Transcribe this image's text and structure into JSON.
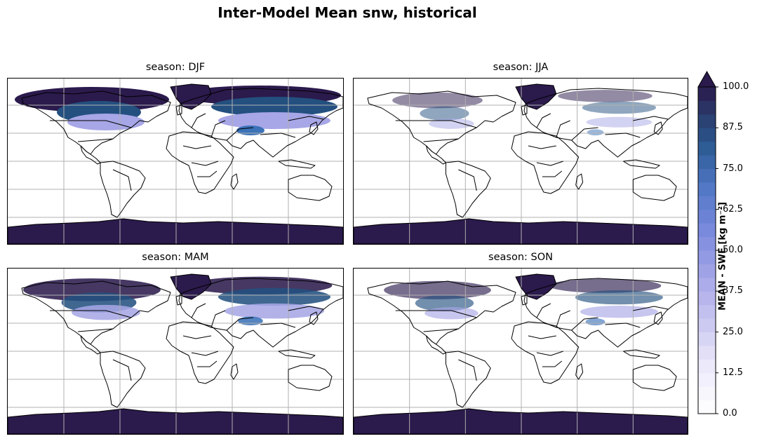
{
  "figure": {
    "title": "Inter-Model Mean snw, historical"
  },
  "panels": [
    {
      "id": "djf",
      "title": "season: DJF",
      "snow_level": 1.0
    },
    {
      "id": "jja",
      "title": "season: JJA",
      "snow_level": 0.25
    },
    {
      "id": "mam",
      "title": "season: MAM",
      "snow_level": 0.8
    },
    {
      "id": "son",
      "title": "season: SON",
      "snow_level": 0.45
    }
  ],
  "colorbar": {
    "label": "MEAN - SWE [kg m⁻²]",
    "min": 0.0,
    "max": 100.0,
    "extend": "max",
    "tick_labels": [
      "0.0",
      "12.5",
      "25.0",
      "37.5",
      "50.0",
      "62.5",
      "75.0",
      "87.5",
      "100.0"
    ],
    "colors": [
      "#ffffff",
      "#2b1a4c",
      "#23507f",
      "#3b72b8",
      "#6d86d6",
      "#a7a6e6",
      "#dcdaf6"
    ]
  },
  "map_style": {
    "coast_color": "#000000",
    "grid_color": "#b0b0b0",
    "antarctica_color": "#2b1a4c"
  }
}
